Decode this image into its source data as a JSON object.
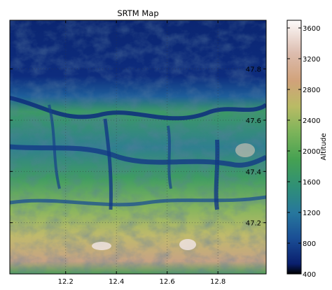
{
  "chart_data": {
    "type": "heatmap",
    "title": "SRTM Map",
    "xlabel": "",
    "ylabel": "",
    "x_ticks": [
      12.2,
      12.4,
      12.6,
      12.8
    ],
    "y_ticks": [
      47.2,
      47.4,
      47.6,
      47.8
    ],
    "xlim": [
      11.98,
      12.99
    ],
    "ylim": [
      47.0,
      47.99
    ],
    "x_tick_labels": [
      "12.2",
      "12.4",
      "12.6",
      "12.8"
    ],
    "y_tick_labels": [
      "47.2",
      "47.4",
      "47.6",
      "47.8"
    ],
    "y_axis_side": "right",
    "grid": true,
    "colorbar": {
      "label": "Altitude",
      "range": [
        400,
        3700
      ],
      "ticks": [
        400,
        800,
        1200,
        1600,
        2000,
        2400,
        2800,
        3200,
        3600
      ],
      "tick_labels": [
        "400",
        "800",
        "1200",
        "1600",
        "2000",
        "2400",
        "2800",
        "3200",
        "3600"
      ],
      "colormap": "gist_earth",
      "colors": [
        "#000000",
        "#0d2a7a",
        "#1f5fa0",
        "#2f8a84",
        "#4ba552",
        "#85ba5c",
        "#c2c06a",
        "#d2a67c",
        "#e6cfc6",
        "#fdfbfb"
      ]
    }
  }
}
